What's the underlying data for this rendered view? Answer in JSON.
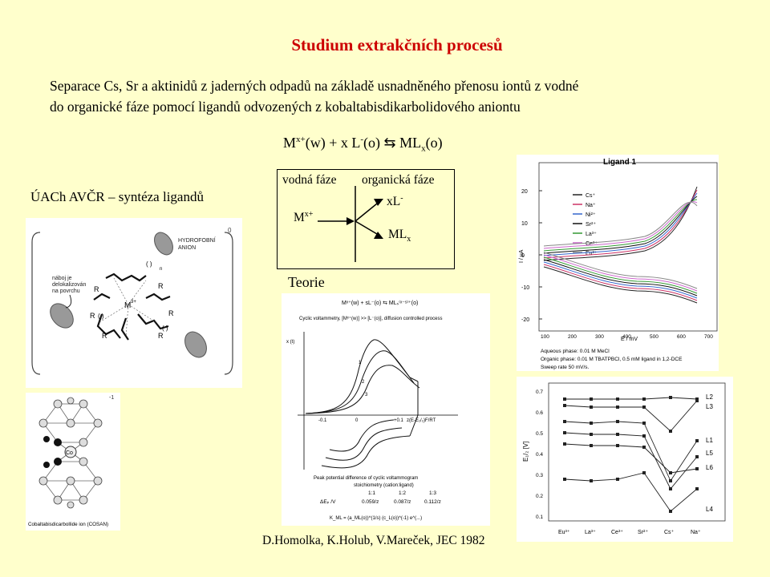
{
  "title": "Studium extrakčních procesů",
  "intro": {
    "line1": "Separace Cs, Sr a aktinidů z jaderných odpadů na základě usnadněného přenosu iontů z vodné",
    "line2": "do organické fáze pomocí ligandů odvozených z kobaltabisdikarbolidového aniontu"
  },
  "equation": {
    "m": "M",
    "charge": "x+",
    "rest1": "(w) + x L",
    "minus": "-",
    "rest2": "(o)",
    "arrow": "⇆",
    "ml": "ML",
    "sub": "x",
    "rest3": "(o)"
  },
  "left_label": "ÚACh AVČR – syntéza ligandů",
  "scheme": {
    "aqueous": "vodná fáze",
    "organic": "organická fáze",
    "m": "M",
    "m_charge": "x+",
    "xl": "xL",
    "xl_charge": "-",
    "ml": "ML",
    "ml_sub": "x"
  },
  "theory_label": "Teorie",
  "credit": "D.Homolka, K.Holub, V.Mareček, JEC 1982",
  "ligand_panel": {
    "top_label1": "HYDROFOBNÍ",
    "top_label2": "ANION",
    "left_note1": "náboj je",
    "left_note2": "delokalizován",
    "left_note3": "na povrchu",
    "center": "M",
    "center_charge": "3+",
    "r": "R",
    "n": "n"
  },
  "cosan_panel": {
    "caption": "Cobaltabisdicarbollide ion (COSAN)",
    "co": "Co",
    "corner": "-1"
  },
  "cv_panel": {
    "header": "Mˣ⁺(w) + sL⁻(o) ⇆ MLₛ⁽ˣ⁻ˢ⁾⁺(o)",
    "subtitle1": "Cyclic voltammetry, [Mˣ⁺(w)] >> [L⁻(o)], diffusion controlled process",
    "stoich_title1": "Peak potential difference of cyclic voltammogram",
    "stoich_title2": "stoichiometry (cation:ligand)",
    "ratios": [
      "1:1",
      "1:2",
      "1:3"
    ],
    "delta_label": "ΔEₚ /V",
    "deltas": [
      "0.059/z",
      "0.087/z",
      "0.112/z"
    ],
    "keq": "K_ML = (a_ML(o))^(1/s) (c_L(o))^(-1) e^(...)",
    "y_axis": "x (t)",
    "x_axis": "z(E-E₁/₂)F/RT",
    "curve_labels": [
      "1",
      "2",
      "3"
    ],
    "x_ticks": [
      "-0.1",
      "0",
      "+0.1"
    ]
  },
  "ligand1_chart": {
    "title": "Ligand 1",
    "ylabel": "I / μA",
    "xlabel": "E / mV",
    "x_ticks": [
      "100",
      "200",
      "300",
      "400",
      "500",
      "600",
      "700"
    ],
    "y_ticks": [
      "20",
      "10",
      "0",
      "-10",
      "-20"
    ],
    "legend": [
      "Cs⁺",
      "Na⁺",
      "Ni²⁺",
      "Sr²⁺",
      "La³⁺",
      "Ce³⁺",
      "Eu³⁺"
    ],
    "notes": [
      "Aqueous phase: 0.01 M MeCl",
      "Organic phase: 0.01 M TBATPBCl, 0.5 mM ligand in 1,2-DCE",
      "Sweep rate 50 mV/s."
    ],
    "colors": [
      "#222222",
      "#cc3366",
      "#3366cc",
      "#111111",
      "#339933",
      "#cc66cc",
      "#888888"
    ]
  },
  "e12_chart": {
    "ylabel": "E₁/₂ [V]",
    "categories": [
      "Eu³⁺",
      "La³⁺",
      "Ce³⁺",
      "Sr²⁺",
      "Cs⁺",
      "Na⁺"
    ],
    "y_ticks": [
      "0.7",
      "0.6",
      "0.5",
      "0.4",
      "0.3",
      "0.2",
      "0.1"
    ],
    "series_labels": [
      "L2",
      "L3",
      "L1",
      "L5",
      "L6",
      "L4"
    ]
  }
}
